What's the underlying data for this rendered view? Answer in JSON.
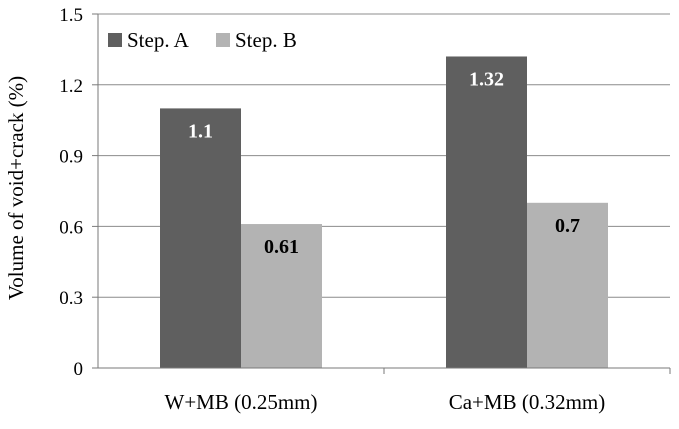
{
  "chart_data": {
    "type": "bar",
    "title": "",
    "xlabel": "",
    "ylabel": "Volume of  void+crack (%)",
    "categories": [
      "W+MB (0.25mm)",
      "Ca+MB (0.32mm)"
    ],
    "series": [
      {
        "name": "Step. A",
        "values": [
          1.1,
          1.32
        ],
        "labels": [
          "1.1",
          "1.32"
        ],
        "color": "#5f5f5f",
        "label_color": "#ffffff"
      },
      {
        "name": "Step. B",
        "values": [
          0.61,
          0.7
        ],
        "labels": [
          "0.61",
          "0.7"
        ],
        "color": "#b3b3b3",
        "label_color": "#000000"
      }
    ],
    "ylim": [
      0,
      1.5
    ],
    "yticks": [
      0,
      0.3,
      0.6,
      0.9,
      1.2,
      1.5
    ],
    "ytick_labels": [
      "0",
      "0.3",
      "0.6",
      "0.9",
      "1.2",
      "1.5"
    ],
    "grid": true,
    "legend_position": "top-left"
  }
}
